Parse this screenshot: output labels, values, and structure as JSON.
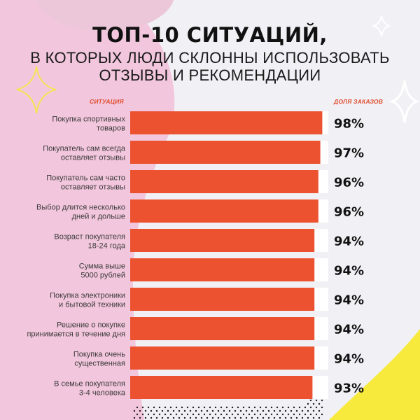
{
  "title": {
    "line1": "ТОП-10 СИТУАЦИЙ,",
    "line2": "В КОТОРЫХ ЛЮДИ СКЛОННЫ ИСПОЛЬЗОВАТЬ",
    "line3": "ОТЗЫВЫ И РЕКОМЕНДАЦИИ"
  },
  "colors": {
    "bar": "#ec5230",
    "track": "#ffffff",
    "label": "#3a3a3a",
    "value": "#111111",
    "heading": "#e04a2c",
    "blob_pink": "#f2c6dc",
    "accent_yellow": "#f7ea3c"
  },
  "chart_data": {
    "type": "bar",
    "orientation": "horizontal",
    "xlabel": "СИТУАЦИЯ",
    "ylabel": "ДОЛЯ ЗАКАЗОВ",
    "xlim": [
      0,
      100
    ],
    "categories": [
      [
        "Покупка спортивных",
        "товаров"
      ],
      [
        "Покупатель сам всегда",
        "оставляет отзывы"
      ],
      [
        "Покупатель сам часто",
        "оставляет отзывы"
      ],
      [
        "Выбор длится несколько",
        "дней и дольше"
      ],
      [
        "Возраст покупателя",
        "18-24 года"
      ],
      [
        "Сумма выше",
        "5000 рублей"
      ],
      [
        "Покупка электроники",
        "и бытовой техники"
      ],
      [
        "Решение о покупке",
        "принимается в течение дня"
      ],
      [
        "Покупка очень",
        "существенная"
      ],
      [
        "В семье покупателя",
        "3-4 человека"
      ]
    ],
    "values": [
      98,
      97,
      96,
      96,
      94,
      94,
      94,
      94,
      94,
      93
    ],
    "value_labels": [
      "98%",
      "97%",
      "96%",
      "96%",
      "94%",
      "94%",
      "94%",
      "94%",
      "94%",
      "93%"
    ]
  }
}
